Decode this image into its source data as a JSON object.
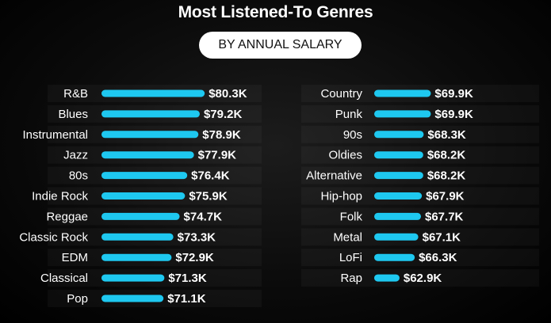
{
  "chart_data": {
    "type": "bar",
    "orientation": "horizontal",
    "title": "Most Listened-To Genres",
    "subtitle": "BY ANNUAL SALARY",
    "bar_color": "#1ec8f0",
    "groups": [
      {
        "categories": [
          "R&B",
          "Blues",
          "Instrumental",
          "Jazz",
          "80s",
          "Indie Rock",
          "Reggae",
          "Classic Rock",
          "EDM",
          "Classical",
          "Pop"
        ],
        "values": [
          80.3,
          79.2,
          78.9,
          77.9,
          76.4,
          75.9,
          74.7,
          73.3,
          72.9,
          71.3,
          71.1
        ],
        "value_labels": [
          "$80.3K",
          "$79.2K",
          "$78.9K",
          "$77.9K",
          "$76.4K",
          "$75.9K",
          "$74.7K",
          "$73.3K",
          "$72.9K",
          "$71.3K",
          "$71.1K"
        ]
      },
      {
        "categories": [
          "Country",
          "Punk",
          "90s",
          "Oldies",
          "Alternative",
          "Hip-hop",
          "Folk",
          "Metal",
          "LoFi",
          "Rap"
        ],
        "values": [
          69.9,
          69.9,
          68.3,
          68.2,
          68.2,
          67.9,
          67.7,
          67.1,
          66.3,
          62.9
        ],
        "value_labels": [
          "$69.9K",
          "$69.9K",
          "$68.3K",
          "$68.2K",
          "$68.2K",
          "$67.9K",
          "$67.7K",
          "$67.1K",
          "$66.3K",
          "$62.9K"
        ]
      }
    ]
  }
}
